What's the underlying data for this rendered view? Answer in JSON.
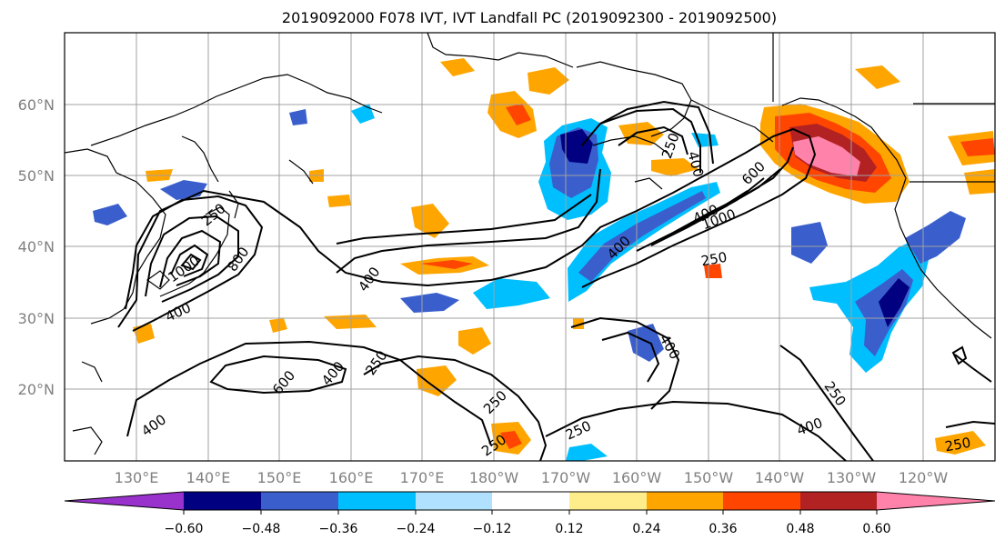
{
  "title": "2019092000 F078 IVT, IVT Landfall PC (2019092300 - 2019092500)",
  "lat_labels": [
    "60°N",
    "50°N",
    "40°N",
    "30°N",
    "20°N"
  ],
  "lon_labels": [
    "130°E",
    "140°E",
    "150°E",
    "160°E",
    "170°E",
    "180°W",
    "170°W",
    "160°W",
    "150°W",
    "140°W",
    "130°W",
    "120°W"
  ],
  "colorbar": {
    "colors": [
      "#9932cc",
      "#000080",
      "#3a5fcd",
      "#00bfff",
      "#b0e2ff",
      "#ffffff",
      "#ffec8b",
      "#ffa500",
      "#ff4500",
      "#b22222",
      "#ff82ab"
    ],
    "tick_labels": [
      "−0.60",
      "−0.48",
      "−0.36",
      "−0.24",
      "−0.12",
      "0.12",
      "0.24",
      "0.36",
      "0.48",
      "0.60"
    ]
  },
  "contour_labels": [
    "1000",
    "800",
    "400",
    "400",
    "250",
    "600",
    "400",
    "250",
    "400",
    "250",
    "250",
    "250",
    "600",
    "1000",
    "400",
    "250",
    "400",
    "400",
    "250",
    "400",
    "250",
    "400",
    "250"
  ]
}
